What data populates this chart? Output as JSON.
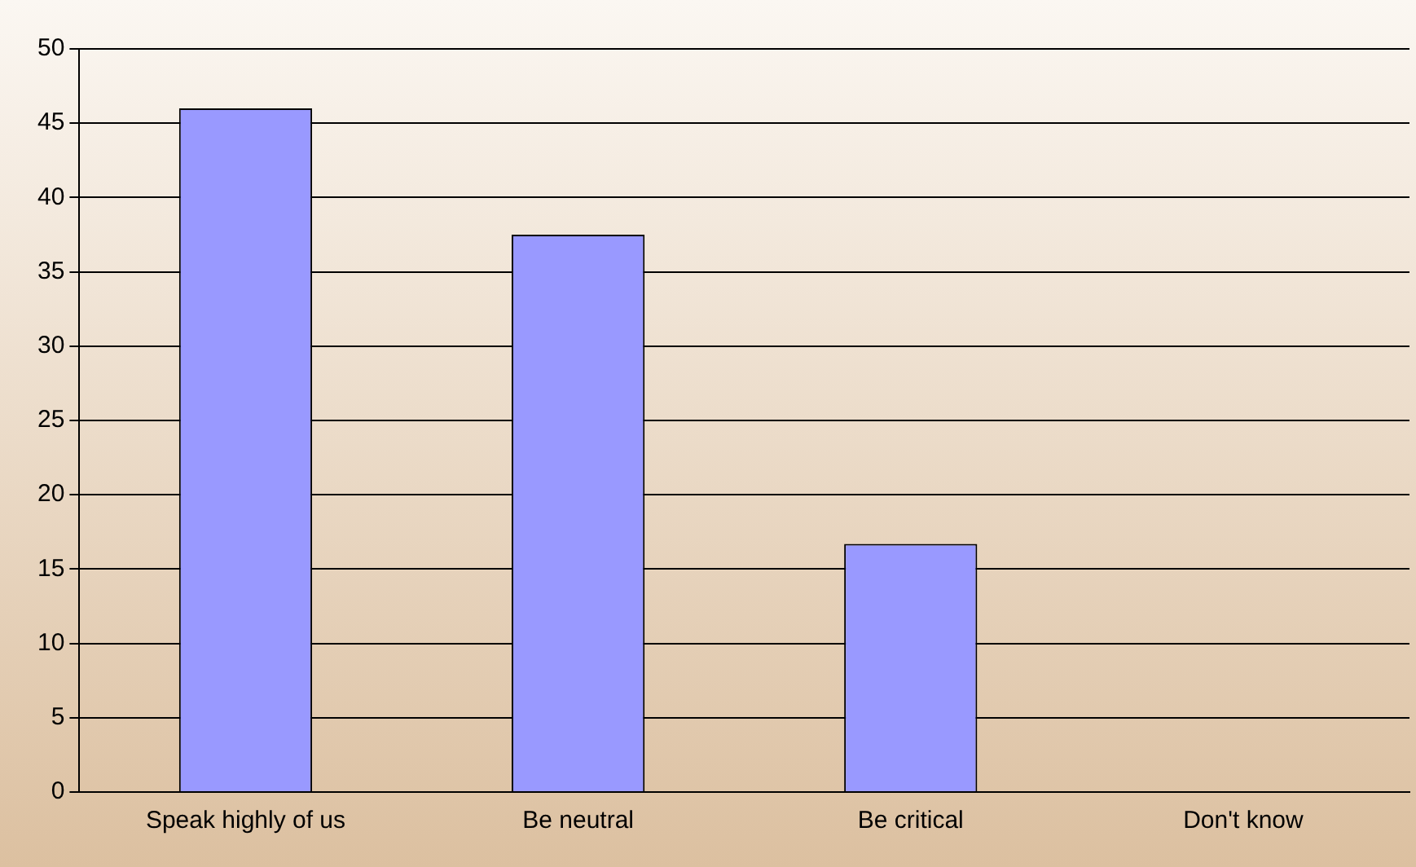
{
  "chart_data": {
    "type": "bar",
    "categories": [
      "Speak highly of us",
      "Be neutral",
      "Be critical",
      "Don't know"
    ],
    "values": [
      46,
      37.5,
      16.7,
      0
    ],
    "color": "#9999ff",
    "ylim": [
      0,
      50
    ],
    "yticks": [
      0,
      5,
      10,
      15,
      20,
      25,
      30,
      35,
      40,
      45,
      50
    ],
    "grid": "y",
    "legend": false
  }
}
